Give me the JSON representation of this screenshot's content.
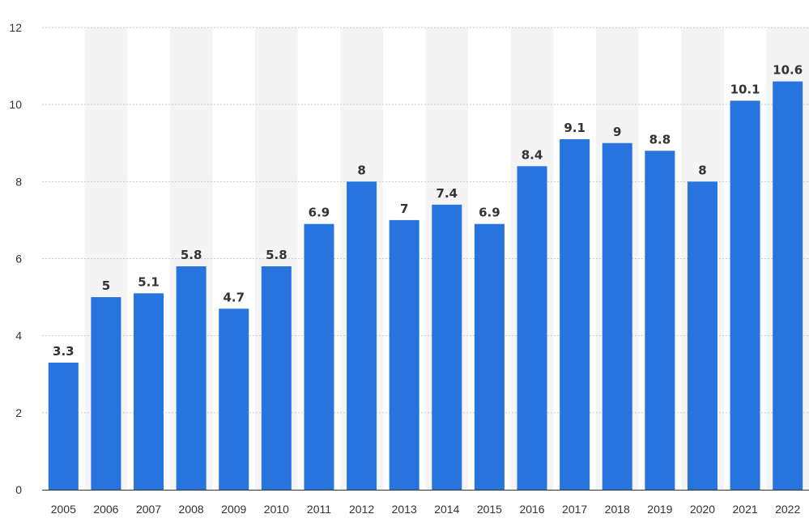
{
  "chart_data": {
    "type": "bar",
    "title": "",
    "xlabel": "",
    "ylabel": "",
    "categories": [
      "2005",
      "2006",
      "2007",
      "2008",
      "2009",
      "2010",
      "2011",
      "2012",
      "2013",
      "2014",
      "2015",
      "2016",
      "2017",
      "2018",
      "2019",
      "2020",
      "2021",
      "2022"
    ],
    "values": [
      3.3,
      5,
      5.1,
      5.8,
      4.7,
      5.8,
      6.9,
      8,
      7,
      7.4,
      6.9,
      8.4,
      9.1,
      9,
      8.8,
      8,
      10.1,
      10.6
    ],
    "value_labels": [
      "3.3",
      "5",
      "5.1",
      "5.8",
      "4.7",
      "5.8",
      "6.9",
      "8",
      "7",
      "7.4",
      "6.9",
      "8.4",
      "9.1",
      "9",
      "8.8",
      "8",
      "10.1",
      "10.6"
    ],
    "ylim": [
      0,
      12
    ],
    "yticks": [
      0,
      2,
      4,
      6,
      8,
      10,
      12
    ],
    "ytick_labels": [
      "0",
      "2",
      "4",
      "6",
      "8",
      "10",
      "12"
    ],
    "grid": true,
    "legend": "none",
    "colors": {
      "bar": "#2874de",
      "grid": "#c8c8c8",
      "band": "#f4f4f4",
      "text": "#333333"
    }
  }
}
